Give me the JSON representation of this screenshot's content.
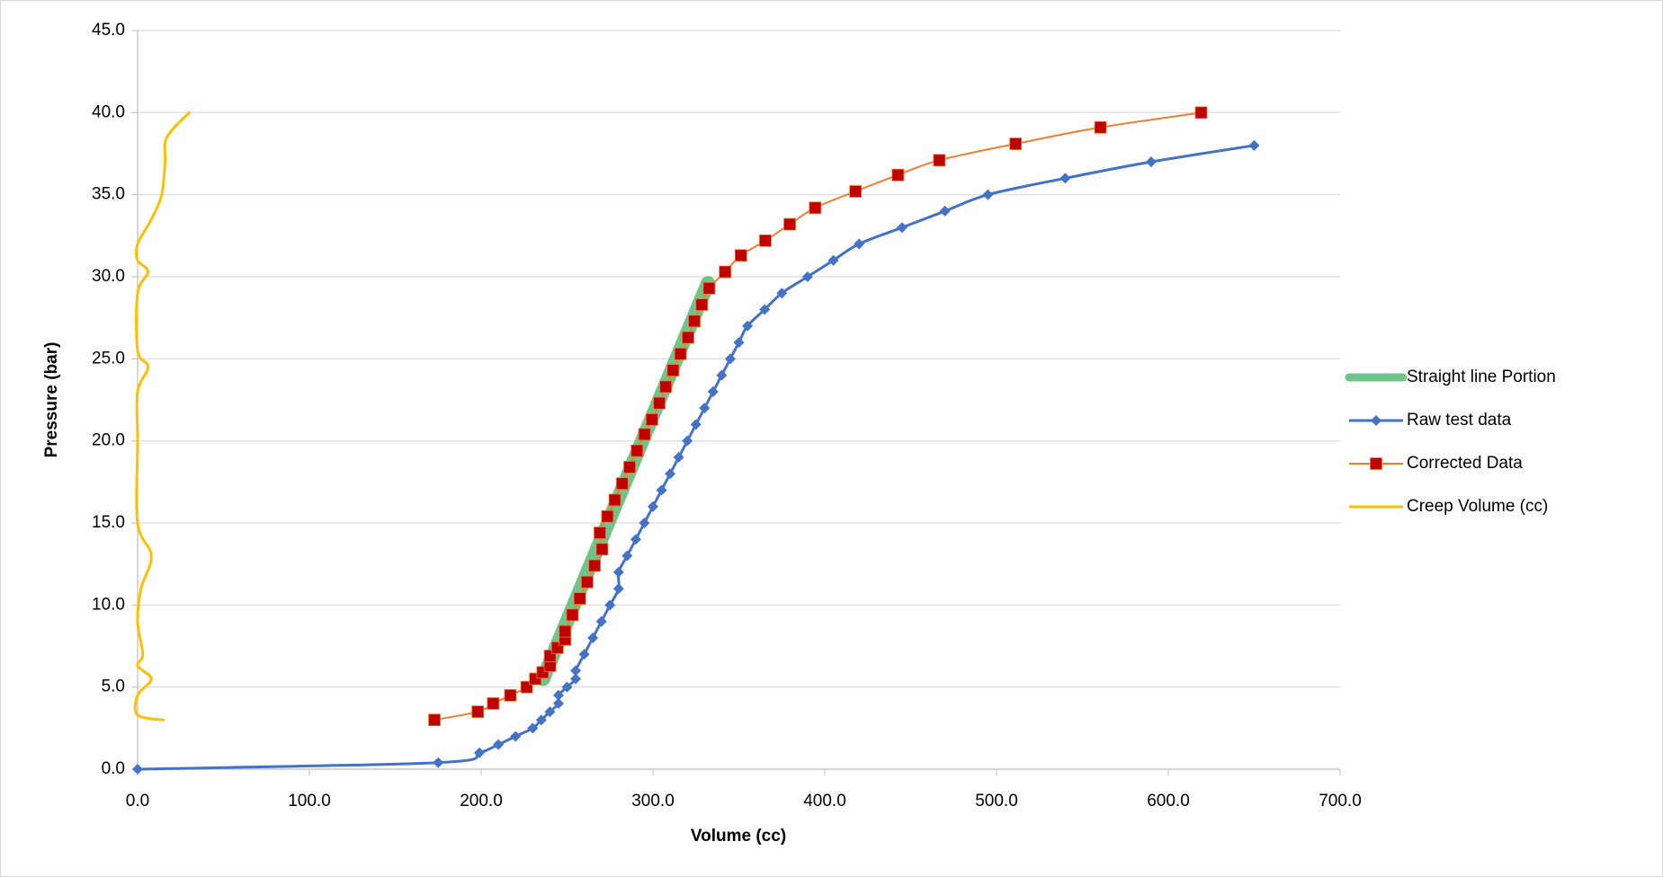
{
  "chart_data": {
    "type": "scatter",
    "x_label": "Volume (cc)",
    "y_label": "Pressure (bar)",
    "xlim": [
      0,
      700
    ],
    "ylim": [
      0,
      45
    ],
    "xticks": [
      {
        "value": 0,
        "label": "0.0"
      },
      {
        "value": 100,
        "label": "100.0"
      },
      {
        "value": 200,
        "label": "200.0"
      },
      {
        "value": 300,
        "label": "300.0"
      },
      {
        "value": 400,
        "label": "400.0"
      },
      {
        "value": 500,
        "label": "500.0"
      },
      {
        "value": 600,
        "label": "600.0"
      },
      {
        "value": 700,
        "label": "700.0"
      }
    ],
    "yticks": [
      {
        "value": 0,
        "label": "0.0"
      },
      {
        "value": 5,
        "label": "5.0"
      },
      {
        "value": 10,
        "label": "10.0"
      },
      {
        "value": 15,
        "label": "15.0"
      },
      {
        "value": 20,
        "label": "20.0"
      },
      {
        "value": 25,
        "label": "25.0"
      },
      {
        "value": 30,
        "label": "30.0"
      },
      {
        "value": 35,
        "label": "35.0"
      },
      {
        "value": 40,
        "label": "40.0"
      },
      {
        "value": 45,
        "label": "45.0"
      }
    ],
    "grid": true,
    "legend": "right",
    "series": [
      {
        "name": "Straight line Portion",
        "color": "#70c48a",
        "line_width": 16,
        "marker": "none",
        "x": [
          236,
          332
        ],
        "values": [
          5.5,
          29.6
        ]
      },
      {
        "name": "Raw test data",
        "color": "#4472c4",
        "line_width": 3,
        "marker": "diamond",
        "x": [
          0,
          175,
          199,
          210,
          220,
          230,
          235,
          240,
          245,
          245,
          250,
          255,
          255,
          260,
          265,
          270,
          275,
          280,
          280,
          285,
          290,
          295,
          300,
          305,
          310,
          315,
          320,
          325,
          330,
          335,
          340,
          345,
          350,
          355,
          365,
          375,
          390,
          405,
          420,
          445,
          470,
          495,
          540,
          590,
          650
        ],
        "values": [
          0,
          0.4,
          1,
          1.5,
          2,
          2.5,
          3,
          3.5,
          4,
          4.5,
          5,
          5.5,
          6,
          7,
          8,
          9,
          10,
          11,
          12,
          13,
          14,
          15,
          16,
          17,
          18,
          19,
          20,
          21,
          22,
          23,
          24,
          25,
          26,
          27,
          28,
          29,
          30,
          31,
          32,
          33,
          34,
          35,
          36,
          37,
          38
        ]
      },
      {
        "name": "Corrected Data",
        "color": "#ed7d31",
        "marker_color": "#c00000",
        "line_width": 2,
        "marker": "square",
        "x": [
          172.8,
          198,
          207,
          217,
          226.5,
          231.5,
          235.8,
          240.1,
          240.1,
          244.4,
          248.8,
          248.8,
          253.1,
          257.4,
          261.7,
          266,
          270.4,
          269.1,
          273.5,
          277.8,
          282.1,
          286.4,
          290.7,
          295.1,
          299.4,
          303.7,
          307.4,
          311.7,
          316,
          320.4,
          324.1,
          328.4,
          332.7,
          342,
          351.2,
          365.4,
          379.6,
          394.4,
          417.9,
          442.6,
          466.7,
          511.1,
          560.5,
          619.1
        ],
        "values": [
          3,
          3.5,
          4,
          4.5,
          5,
          5.5,
          5.9,
          6.3,
          6.9,
          7.4,
          7.9,
          8.4,
          9.4,
          10.4,
          11.4,
          12.4,
          13.4,
          14.4,
          15.4,
          16.4,
          17.4,
          18.4,
          19.4,
          20.4,
          21.3,
          22.3,
          23.3,
          24.3,
          25.3,
          26.3,
          27.3,
          28.3,
          29.3,
          30.3,
          31.3,
          32.2,
          33.2,
          34.2,
          35.2,
          36.2,
          37.1,
          38.1,
          39.1,
          40
        ]
      },
      {
        "name": "Creep Volume (cc)",
        "color": "#ffc000",
        "line_width": 3,
        "marker": "none",
        "x": [
          15,
          0,
          0,
          8,
          0,
          3,
          0,
          2,
          8,
          0,
          0,
          0,
          6,
          0,
          0,
          6,
          0,
          0,
          8,
          14,
          16,
          17,
          30
        ],
        "values": [
          3.0,
          3.3,
          4.5,
          5.5,
          6.3,
          7,
          9,
          11,
          13,
          15,
          20,
          23,
          24.5,
          25.5,
          29,
          30.3,
          31,
          32,
          33.5,
          35,
          37,
          38.5,
          40
        ]
      }
    ]
  }
}
